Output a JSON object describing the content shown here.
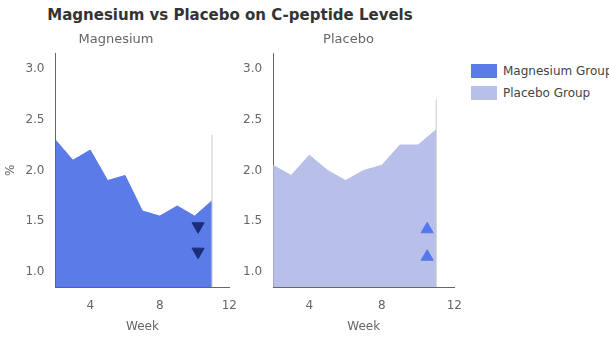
{
  "title": "Magnesium vs Placebo on C-peptide Levels",
  "legend": "upper right",
  "chart_data": [
    {
      "type": "area",
      "title": "Magnesium",
      "xlabel": "Week",
      "ylabel": "%",
      "x": [
        2,
        3,
        4,
        5,
        6,
        7,
        8,
        9,
        10,
        11
      ],
      "series": [
        {
          "name": "Magnesium Group",
          "color": "#5b7be8",
          "values": [
            2.3,
            2.1,
            2.2,
            1.9,
            1.95,
            1.6,
            1.55,
            1.65,
            1.55,
            1.7
          ]
        }
      ],
      "xlim": [
        2,
        12
      ],
      "xticks": [
        4,
        8,
        12
      ],
      "ylim": [
        0.85,
        3.15
      ],
      "yticks": [
        {
          "value": 1.0,
          "label": "1.0"
        },
        1.5,
        {
          "value": 2.0,
          "label": "2.0"
        },
        2.5,
        {
          "value": 3.0,
          "label": "3.0"
        }
      ],
      "vline": {
        "x": 11.0,
        "ymax": 2.35
      },
      "arrows": {
        "x": 10.2,
        "y": [
          1.45,
          1.2
        ],
        "direction": "down",
        "color": "#1a2d7a"
      },
      "grid": false
    },
    {
      "type": "area",
      "title": "Placebo",
      "xlabel": "Week",
      "x": [
        2,
        3,
        4,
        5,
        6,
        7,
        8,
        9,
        10,
        11
      ],
      "series": [
        {
          "name": "Placebo Group",
          "color": "#b8bfe8",
          "values": [
            2.05,
            1.95,
            2.15,
            2.0,
            1.9,
            2.0,
            2.05,
            2.25,
            2.25,
            2.4
          ]
        }
      ],
      "xlim": [
        2,
        12
      ],
      "xticks": [
        4,
        8,
        12
      ],
      "ylim": [
        0.85,
        3.15
      ],
      "yticks": [
        {
          "value": 1.0,
          "label": "1.0"
        },
        1.5,
        {
          "value": 2.0,
          "label": "2.0"
        },
        2.5,
        {
          "value": 3.0,
          "label": "3.0"
        }
      ],
      "vline": {
        "x": 11.0,
        "ymax": 2.7
      },
      "arrows": {
        "x": 10.5,
        "y": [
          1.42,
          1.15
        ],
        "direction": "up",
        "color": "#5577ee"
      },
      "grid": false
    }
  ]
}
